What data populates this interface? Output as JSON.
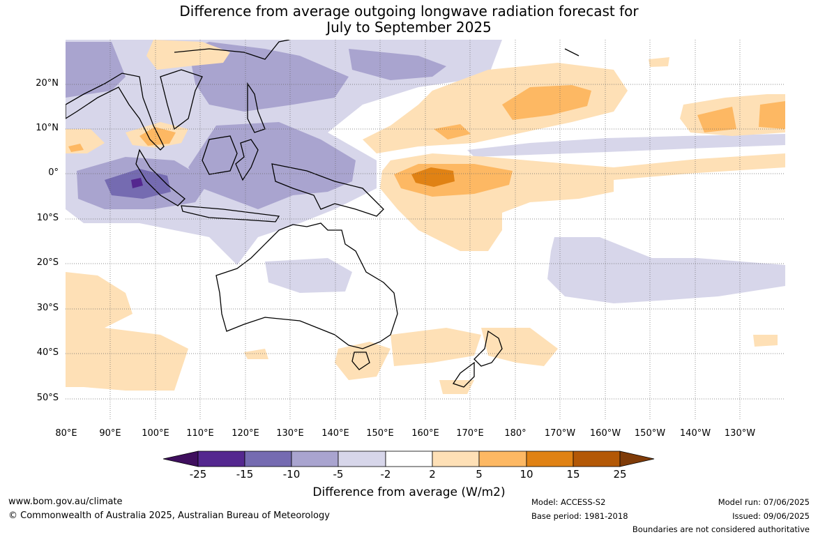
{
  "title": {
    "line1": "Difference from average outgoing longwave radiation forecast for",
    "line2": "July to September 2025"
  },
  "map": {
    "lat_labels": [
      "20°N",
      "10°N",
      "0°",
      "10°S",
      "20°S",
      "30°S",
      "40°S",
      "50°S"
    ],
    "lon_labels": [
      "80°E",
      "90°E",
      "100°E",
      "110°E",
      "120°E",
      "130°E",
      "140°E",
      "150°E",
      "160°E",
      "170°E",
      "180°",
      "170°W",
      "160°W",
      "150°W",
      "140°W",
      "130°W"
    ]
  },
  "colorbar": {
    "ticks": [
      "-25",
      "-15",
      "-10",
      "-5",
      "-2",
      "2",
      "5",
      "10",
      "15",
      "25"
    ],
    "colors": [
      "#3f0f5e",
      "#54278f",
      "#756bb1",
      "#a9a4cf",
      "#d7d6ea",
      "#ffffff",
      "#fee0b6",
      "#fdb863",
      "#e08214",
      "#b35806",
      "#7f3b08"
    ],
    "label": "Difference from average (W/m2)"
  },
  "footer": {
    "url": "www.bom.gov.au/climate",
    "copyright": "© Commonwealth of Australia 2025, Australian Bureau of Meteorology",
    "model": "Model: ACCESS-S2",
    "base_period": "Base period: 1981-2018",
    "model_run": "Model run: 07/06/2025",
    "issued": "Issued: 09/06/2025",
    "boundaries": "Boundaries are not considered authoritative"
  }
}
